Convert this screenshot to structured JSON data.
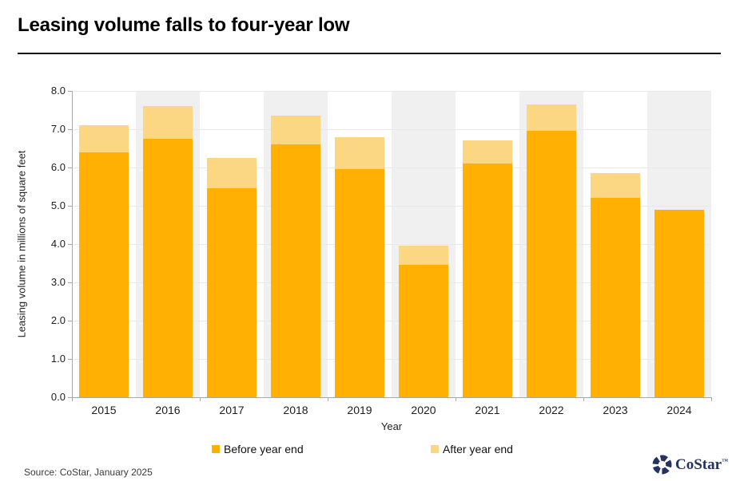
{
  "title": "Leasing volume falls to four-year low",
  "chart_data": {
    "type": "bar",
    "stacked": true,
    "title": "Leasing volume falls to four-year low",
    "xlabel": "Year",
    "ylabel": "Leasing volume in millions of square feet",
    "categories": [
      "2015",
      "2016",
      "2017",
      "2018",
      "2019",
      "2020",
      "2021",
      "2022",
      "2023",
      "2024"
    ],
    "series": [
      {
        "name": "Before year end",
        "color": "#FFB003",
        "values": [
          6.4,
          6.75,
          5.45,
          6.6,
          5.95,
          3.45,
          6.1,
          6.95,
          5.2,
          4.9
        ]
      },
      {
        "name": "After year end",
        "color": "#FBD783",
        "values": [
          0.7,
          0.85,
          0.8,
          0.75,
          0.85,
          0.5,
          0.6,
          0.7,
          0.65,
          0
        ]
      }
    ],
    "totals": [
      7.1,
      7.6,
      6.25,
      7.35,
      6.8,
      3.95,
      6.7,
      7.65,
      5.85,
      4.9
    ],
    "ylim": [
      0,
      8
    ],
    "ytick_step": 1,
    "ytick_labels": [
      "0.0",
      "1.0",
      "2.0",
      "3.0",
      "4.0",
      "5.0",
      "6.0",
      "7.0",
      "8.0"
    ],
    "grid": true,
    "legend_position": "bottom",
    "plot_band_shading": "alternating column bands, even years shaded"
  },
  "colors": {
    "before": "#FFB003",
    "after": "#FBD783",
    "band": "#F0F0F0",
    "grid": "#E9E9E9",
    "axis": "#A8A8A8",
    "brand_navy": "#24335F"
  },
  "footer": {
    "source": "Source: CoStar, January 2025",
    "brand": "CoStar",
    "brand_tm": "™"
  }
}
